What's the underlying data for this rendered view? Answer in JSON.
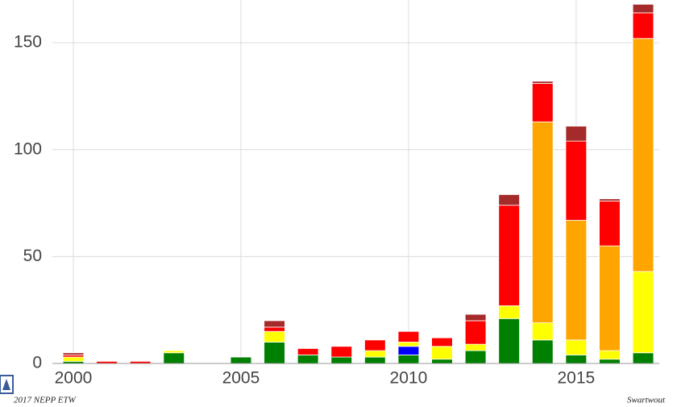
{
  "chart_data": {
    "type": "stacked-bar",
    "x": [
      2000,
      2001,
      2002,
      2003,
      2004,
      2005,
      2006,
      2007,
      2008,
      2009,
      2010,
      2011,
      2012,
      2013,
      2014,
      2015,
      2016,
      2017
    ],
    "series": [
      {
        "color": "#008000",
        "values": [
          1,
          0,
          0,
          5,
          0,
          3,
          10,
          4,
          3,
          3,
          4,
          2,
          6,
          21,
          11,
          4,
          2,
          5
        ]
      },
      {
        "color": "#0000ff",
        "values": [
          0,
          0,
          0,
          0,
          0,
          0,
          0,
          0,
          0,
          0,
          4,
          0,
          0,
          0,
          0,
          0,
          0,
          0
        ]
      },
      {
        "color": "#ffff00",
        "values": [
          2,
          0,
          0,
          1,
          0,
          0,
          5,
          0,
          0,
          3,
          2,
          6,
          3,
          6,
          8,
          7,
          4,
          38
        ]
      },
      {
        "color": "#ffa500",
        "values": [
          0,
          0,
          0,
          0,
          0,
          0,
          0,
          0,
          0,
          0,
          0,
          0,
          0,
          0,
          94,
          56,
          49,
          109
        ]
      },
      {
        "color": "#ff0000",
        "values": [
          1,
          1,
          1,
          0,
          0,
          0,
          2,
          3,
          5,
          5,
          5,
          4,
          11,
          47,
          18,
          37,
          21,
          12
        ]
      },
      {
        "color": "#a52a2a",
        "values": [
          1,
          0,
          0,
          0,
          0,
          0,
          3,
          0,
          0,
          0,
          0,
          0,
          3,
          5,
          1,
          7,
          1,
          4
        ]
      }
    ],
    "xlim": [
      1999.375,
      2017.48
    ],
    "ylim": [
      0,
      170
    ],
    "xticks": [
      2000,
      2005,
      2010,
      2015
    ],
    "yticks": [
      0,
      50,
      100,
      150
    ],
    "grid": true,
    "footer_left": "2017 NEPP ETW",
    "footer_right": "Swartwout"
  }
}
